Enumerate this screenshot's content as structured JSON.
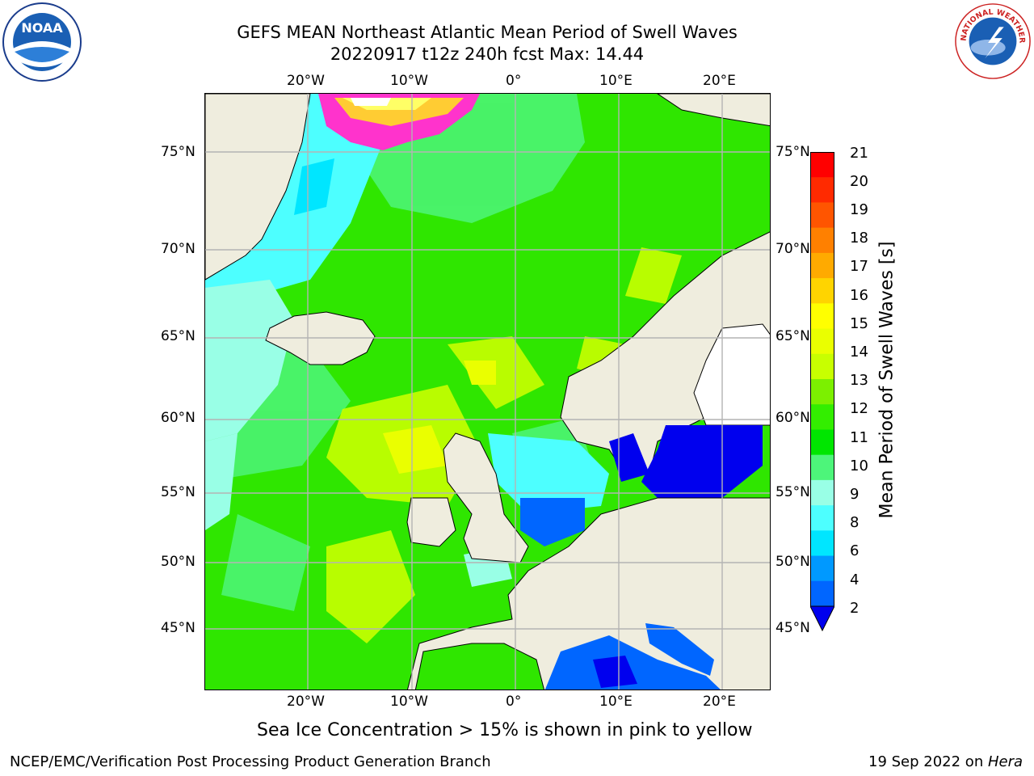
{
  "title": {
    "line1": "GEFS MEAN Northeast Atlantic Mean Period of Swell Waves",
    "line2": "20220917 t12z 240h fcst   Max: 14.44"
  },
  "axes": {
    "top_lon_ticks": [
      "20°W",
      "10°W",
      "0°",
      "10°E",
      "20°E"
    ],
    "bottom_lon_ticks": [
      "20°W",
      "10°W",
      "0°",
      "10°E",
      "20°E"
    ],
    "left_lat_ticks": [
      "75°N",
      "70°N",
      "65°N",
      "60°N",
      "55°N",
      "50°N",
      "45°N"
    ],
    "right_lat_ticks": [
      "75°N",
      "70°N",
      "65°N",
      "60°N",
      "55°N",
      "50°N",
      "45°N"
    ]
  },
  "colorbar": {
    "title": "Mean Period of Swell Waves [s]",
    "tick_labels": [
      "21",
      "20",
      "19",
      "18",
      "17",
      "16",
      "15",
      "14",
      "13",
      "12",
      "11",
      "10",
      "9",
      "8",
      "6",
      "4",
      "2"
    ],
    "colors": [
      "#ff0000",
      "#ff2a00",
      "#ff5500",
      "#ff8000",
      "#ffaa00",
      "#ffd400",
      "#ffff00",
      "#eaff00",
      "#c8ff00",
      "#7cf000",
      "#33ee00",
      "#00e600",
      "#4df57a",
      "#99ffe6",
      "#4dffff",
      "#00e6ff",
      "#0099ff",
      "#0066ff",
      "#0000ee"
    ],
    "units": "s"
  },
  "map": {
    "region": "Northeast Atlantic",
    "land_color": "#efedde",
    "grid_color": "#b4b4b4",
    "sea_ice_colors": [
      "#ff33cc",
      "#ffcc33",
      "#ffff66"
    ]
  },
  "caption": "Sea Ice Concentration > 15% is shown in pink to yellow",
  "footer": {
    "left": "NCEP/EMC/Verification Post Processing Product Generation Branch",
    "right_prefix": "19 Sep 2022 on ",
    "right_machine": "Hera"
  },
  "logos": {
    "noaa_text": "NOAA",
    "nws_text": "NATIONAL WEATHER SERVICE"
  }
}
